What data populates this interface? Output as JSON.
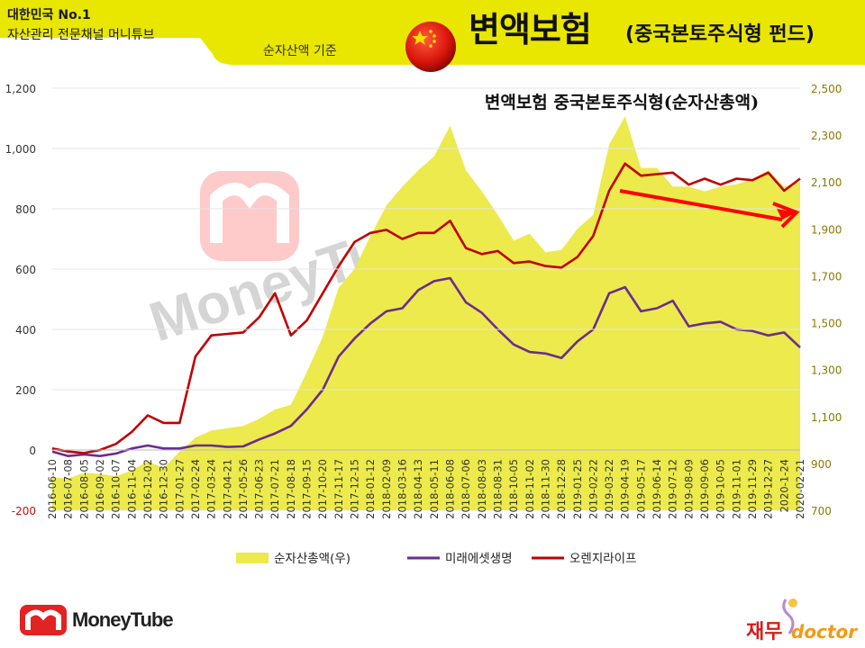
{
  "header": {
    "brand_line_1": "대한민국 No.1",
    "brand_line_2": "자산관리 전문채널 머니튜브",
    "basis": "순자산액 기준",
    "title_main": "변액보험",
    "title_sub": "(중국본토주식형 펀드)",
    "flag_icon": "china-flag-icon"
  },
  "colors": {
    "header_yellow": "#e9e600",
    "area_yellow": "#ecea4c",
    "mirae": "#6a2c91",
    "orange_life": "#c00000",
    "trend_arrow": "#ff0000",
    "tick_text_right": "#8a7a00"
  },
  "chart_data": {
    "type": "line",
    "title": "변액보험 중국본토주식형(순자산총액)",
    "x": [
      "2016-06-10",
      "2016-07-08",
      "2016-08-05",
      "2016-09-02",
      "2016-10-07",
      "2016-11-04",
      "2016-12-02",
      "2016-12-30",
      "2017-01-27",
      "2017-02-24",
      "2017-03-24",
      "2017-04-21",
      "2017-05-26",
      "2017-06-23",
      "2017-07-21",
      "2017-08-18",
      "2017-09-15",
      "2017-10-20",
      "2017-11-17",
      "2017-12-15",
      "2018-01-12",
      "2018-02-09",
      "2018-03-16",
      "2018-04-13",
      "2018-05-11",
      "2018-06-08",
      "2018-07-06",
      "2018-08-03",
      "2018-08-31",
      "2018-10-05",
      "2018-11-02",
      "2018-11-30",
      "2018-12-28",
      "2019-01-25",
      "2019-02-22",
      "2019-03-22",
      "2019-04-19",
      "2019-05-17",
      "2019-06-14",
      "2019-07-12",
      "2019-08-09",
      "2019-09-06",
      "2019-10-05",
      "2019-11-01",
      "2019-11-29",
      "2019-12-27",
      "2020-1-24",
      "2020-02-21"
    ],
    "ylim_left": [
      -200,
      1200
    ],
    "yticks_left": [
      "-200",
      "0",
      "200",
      "400",
      "600",
      "800",
      "1,000",
      "1,200"
    ],
    "ylim_right": [
      700,
      2500
    ],
    "yticks_right": [
      "700",
      "900",
      "1,100",
      "1,300",
      "1,500",
      "1,700",
      "1,900",
      "2,100",
      "2,300",
      "2,500"
    ],
    "series": [
      {
        "name": "순자산총액(우)",
        "axis": "right",
        "kind": "area",
        "values": [
          840,
          835,
          860,
          855,
          845,
          870,
          910,
          880,
          950,
          1010,
          1040,
          1050,
          1060,
          1090,
          1130,
          1150,
          1290,
          1440,
          1650,
          1730,
          1870,
          2000,
          2080,
          2150,
          2210,
          2340,
          2150,
          2060,
          1960,
          1850,
          1880,
          1800,
          1810,
          1900,
          1960,
          2260,
          2380,
          2160,
          2160,
          2080,
          2080,
          2060,
          2080,
          2090,
          2110,
          2150,
          2080,
          2100
        ]
      },
      {
        "name": "미래에셋생명",
        "axis": "left",
        "kind": "line",
        "values": [
          -5,
          -20,
          -15,
          -20,
          -12,
          5,
          15,
          5,
          5,
          15,
          15,
          10,
          12,
          35,
          55,
          80,
          135,
          200,
          310,
          370,
          420,
          460,
          470,
          530,
          560,
          570,
          490,
          455,
          400,
          350,
          325,
          320,
          305,
          360,
          400,
          520,
          540,
          460,
          470,
          495,
          410,
          420,
          425,
          400,
          395,
          380,
          390,
          340
        ]
      },
      {
        "name": "오렌지라이프",
        "axis": "left",
        "kind": "line",
        "values": [
          5,
          -5,
          -10,
          0,
          20,
          60,
          115,
          90,
          90,
          310,
          380,
          385,
          390,
          440,
          520,
          380,
          430,
          520,
          610,
          690,
          720,
          730,
          700,
          720,
          720,
          760,
          670,
          650,
          660,
          620,
          625,
          610,
          605,
          640,
          710,
          860,
          950,
          910,
          915,
          920,
          880,
          900,
          880,
          900,
          895,
          920,
          860,
          900
        ]
      }
    ],
    "legend_position": "bottom",
    "annotation": "red arrow showing downward trend from 2019-04 to 2020-02"
  },
  "footer": {
    "logo_text": "MoneyTube",
    "watermark_text": "MoneyTube",
    "doctor_kor": "재무",
    "doctor_eng": "doctor"
  }
}
